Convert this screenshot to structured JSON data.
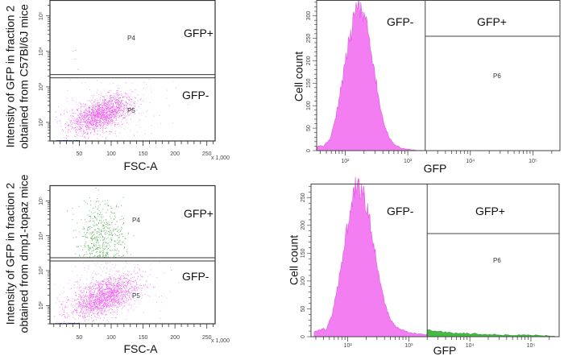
{
  "chart_data": [
    {
      "id": "scatter-c57",
      "type": "scatter",
      "xlabel": "FSC-A",
      "x_multiplier": "x 1,000",
      "ylabel_lines": [
        "Intensity of GFP in fraction 2",
        "obtained from C57Bl/6J mice"
      ],
      "y_scale": "log",
      "xlim": [
        4,
        263
      ],
      "ylim": [
        30,
        280000
      ],
      "xticks": [
        "50",
        "100",
        "150",
        "200",
        "250"
      ],
      "xtick_values": [
        50,
        100,
        150,
        200,
        250
      ],
      "yticks": [
        "10²",
        "10³",
        "10⁴",
        "10⁵"
      ],
      "ytick_values": [
        100,
        1000,
        10000,
        100000
      ],
      "gate_threshold": 2000,
      "gates": [
        {
          "name": "P4",
          "label": "GFP+"
        },
        {
          "name": "P5",
          "label": "GFP-"
        }
      ],
      "populations": [
        {
          "gate": "P5",
          "color": "#ee66ee",
          "n": 1500,
          "fsc_mean": 85,
          "fsc_sd": 24,
          "log_gfp_mean": 2.25,
          "log_gfp_sd": 0.26,
          "corr": 0.55
        },
        {
          "gate": "P5",
          "color": "#f4a0f4",
          "n": 250,
          "fsc_mean": 90,
          "fsc_sd": 45,
          "log_gfp_mean": 2.3,
          "log_gfp_sd": 0.45,
          "corr": 0.3
        },
        {
          "gate": "P4",
          "color": "#66bb66",
          "n": 4,
          "fsc_mean": 45,
          "fsc_sd": 10,
          "log_gfp_mean": 3.7,
          "log_gfp_sd": 0.25,
          "corr": 0
        },
        {
          "gate": "debris",
          "color": "#2233aa",
          "n": 60,
          "fsc_mean": 30,
          "fsc_sd": 10,
          "log_gfp_mean": 1.49,
          "log_gfp_sd": 0.0,
          "corr": 0
        }
      ]
    },
    {
      "id": "hist-c57",
      "type": "area",
      "xlabel": "GFP",
      "ylabel": "Cell count",
      "x_scale": "log",
      "xlim": [
        35,
        270000
      ],
      "ylim": [
        0,
        335
      ],
      "xticks": [
        "10²",
        "10³",
        "10⁴",
        "10⁵"
      ],
      "xtick_values": [
        100,
        1000,
        10000,
        100000
      ],
      "yticks": [
        "0",
        "50",
        "100",
        "150",
        "200",
        "250",
        "300"
      ],
      "ytick_values": [
        0,
        50,
        100,
        150,
        200,
        250,
        300
      ],
      "gate_threshold": 1900,
      "gates": [
        {
          "label": "GFP-"
        },
        {
          "label": "GFP+",
          "name": "P6"
        }
      ],
      "series": [
        {
          "color": "#f27ef2",
          "log_x": [
            1.55,
            1.6,
            1.65,
            1.7,
            1.75,
            1.8,
            1.85,
            1.9,
            1.95,
            2.0,
            2.05,
            2.1,
            2.15,
            2.2,
            2.25,
            2.3,
            2.35,
            2.4,
            2.45,
            2.5,
            2.55,
            2.6,
            2.65,
            2.7,
            2.75,
            2.8,
            2.85,
            2.9,
            2.95,
            3.0,
            3.05,
            3.1,
            3.15,
            3.2,
            3.25,
            3.3
          ],
          "counts": [
            8,
            12,
            9,
            18,
            22,
            48,
            70,
            112,
            150,
            196,
            235,
            262,
            305,
            330,
            312,
            296,
            270,
            232,
            190,
            150,
            108,
            74,
            48,
            30,
            20,
            12,
            9,
            6,
            4,
            3,
            2,
            1,
            1,
            0,
            0,
            0
          ]
        }
      ]
    },
    {
      "id": "scatter-dmp1",
      "type": "scatter",
      "xlabel": "FSC-A",
      "x_multiplier": "x 1,000",
      "ylabel_lines": [
        "Intensity of GFP in fraction 2",
        "obtained from dmp1-topaz mice"
      ],
      "y_scale": "log",
      "xlim": [
        4,
        263
      ],
      "ylim": [
        30,
        280000
      ],
      "xticks": [
        "50",
        "100",
        "150",
        "200",
        "250"
      ],
      "xtick_values": [
        50,
        100,
        150,
        200,
        250
      ],
      "yticks": [
        "10²",
        "10³",
        "10⁴",
        "10⁵"
      ],
      "ytick_values": [
        100,
        1000,
        10000,
        100000
      ],
      "gate_threshold": 2100,
      "gates": [
        {
          "name": "P4",
          "label": "GFP+"
        },
        {
          "name": "P5",
          "label": "GFP-"
        }
      ],
      "populations": [
        {
          "gate": "P5",
          "color": "#ee66ee",
          "n": 1500,
          "fsc_mean": 88,
          "fsc_sd": 26,
          "log_gfp_mean": 2.25,
          "log_gfp_sd": 0.28,
          "corr": 0.55
        },
        {
          "gate": "P5",
          "color": "#f4a0f4",
          "n": 350,
          "fsc_mean": 90,
          "fsc_sd": 45,
          "log_gfp_mean": 2.4,
          "log_gfp_sd": 0.5,
          "corr": 0.3
        },
        {
          "gate": "P4",
          "color": "#55b055",
          "n": 500,
          "fsc_mean": 85,
          "fsc_sd": 18,
          "log_gfp_mean": 4.0,
          "log_gfp_sd": 0.5,
          "corr": 0
        },
        {
          "gate": "debris",
          "color": "#2233aa",
          "n": 60,
          "fsc_mean": 30,
          "fsc_sd": 10,
          "log_gfp_mean": 1.47,
          "log_gfp_sd": 0.0,
          "corr": 0
        }
      ]
    },
    {
      "id": "hist-dmp1",
      "type": "area",
      "xlabel": "GFP",
      "ylabel": "Cell count",
      "x_scale": "log",
      "xlim": [
        25,
        290000
      ],
      "ylim": [
        0,
        275
      ],
      "xticks": [
        "10²",
        "10³",
        "10⁴",
        "10⁵"
      ],
      "xtick_values": [
        100,
        1000,
        10000,
        100000
      ],
      "yticks": [
        "0",
        "50",
        "100",
        "150",
        "200",
        "250"
      ],
      "ytick_values": [
        0,
        50,
        100,
        150,
        200,
        250
      ],
      "gate_threshold": 2000,
      "gates": [
        {
          "label": "GFP-"
        },
        {
          "label": "GFP+",
          "name": "P6"
        }
      ],
      "series": [
        {
          "color": "#f27ef2",
          "log_x": [
            1.45,
            1.5,
            1.55,
            1.6,
            1.65,
            1.7,
            1.75,
            1.8,
            1.85,
            1.9,
            1.95,
            2.0,
            2.05,
            2.1,
            2.15,
            2.2,
            2.25,
            2.3,
            2.35,
            2.4,
            2.45,
            2.5,
            2.55,
            2.6,
            2.65,
            2.7,
            2.75,
            2.8,
            2.85,
            2.9,
            2.95,
            3.0,
            3.05,
            3.1,
            3.15,
            3.2,
            3.25,
            3.3
          ],
          "counts": [
            8,
            10,
            12,
            14,
            12,
            30,
            40,
            70,
            100,
            130,
            170,
            200,
            235,
            262,
            272,
            258,
            262,
            240,
            215,
            180,
            150,
            118,
            88,
            64,
            44,
            32,
            24,
            18,
            14,
            12,
            10,
            8,
            6,
            6,
            5,
            5,
            4,
            4
          ]
        },
        {
          "color": "#44bb44",
          "log_x": [
            3.3,
            3.4,
            3.5,
            3.6,
            3.7,
            3.8,
            3.9,
            4.0,
            4.1,
            4.2,
            4.3,
            4.4,
            4.5,
            4.6,
            4.7,
            4.8,
            4.9,
            5.0,
            5.1,
            5.2,
            5.3,
            5.4
          ],
          "counts": [
            12,
            10,
            9,
            8,
            7,
            6,
            6,
            5,
            5,
            4,
            4,
            4,
            3,
            3,
            3,
            3,
            3,
            3,
            2,
            2,
            2,
            1
          ]
        }
      ]
    }
  ]
}
